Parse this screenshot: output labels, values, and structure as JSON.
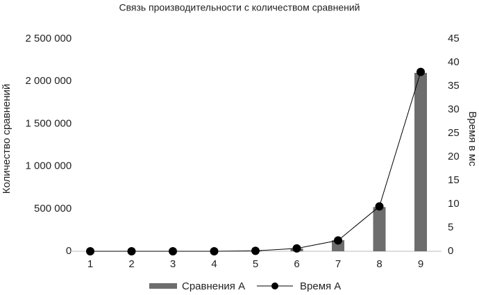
{
  "chart_data": {
    "type": "combo",
    "title": "Связь производительности с количеством сравнений",
    "y_label": "Количество сравнений",
    "y2_label": "Время в мс",
    "categories": [
      "1",
      "2",
      "3",
      "4",
      "5",
      "6",
      "7",
      "8",
      "9"
    ],
    "series": [
      {
        "name": "Сравнения А",
        "type": "bar",
        "color": "#6d6d6d",
        "values": [
          30,
          120,
          500,
          2000,
          8000,
          33000,
          130000,
          520000,
          2100000
        ]
      },
      {
        "name": "Время А",
        "type": "line",
        "axis": "y2",
        "color": "#000000",
        "values": [
          0,
          0,
          0,
          0,
          0.1,
          0.6,
          2.3,
          9.5,
          38
        ]
      }
    ],
    "ylim": [
      0,
      2500000
    ],
    "yticks": [
      0,
      {
        "value": 500000,
        "label": "500 000"
      },
      {
        "value": 1000000,
        "label": "1 000 000"
      },
      {
        "value": 1500000,
        "label": "1 500 000"
      },
      {
        "value": 2000000,
        "label": "2 000 000"
      },
      {
        "value": 2500000,
        "label": "2 500 000"
      }
    ],
    "y2lim": [
      0,
      45
    ],
    "y2ticks": [
      0,
      5,
      10,
      15,
      20,
      25,
      30,
      35,
      40,
      45
    ],
    "grid": false
  }
}
